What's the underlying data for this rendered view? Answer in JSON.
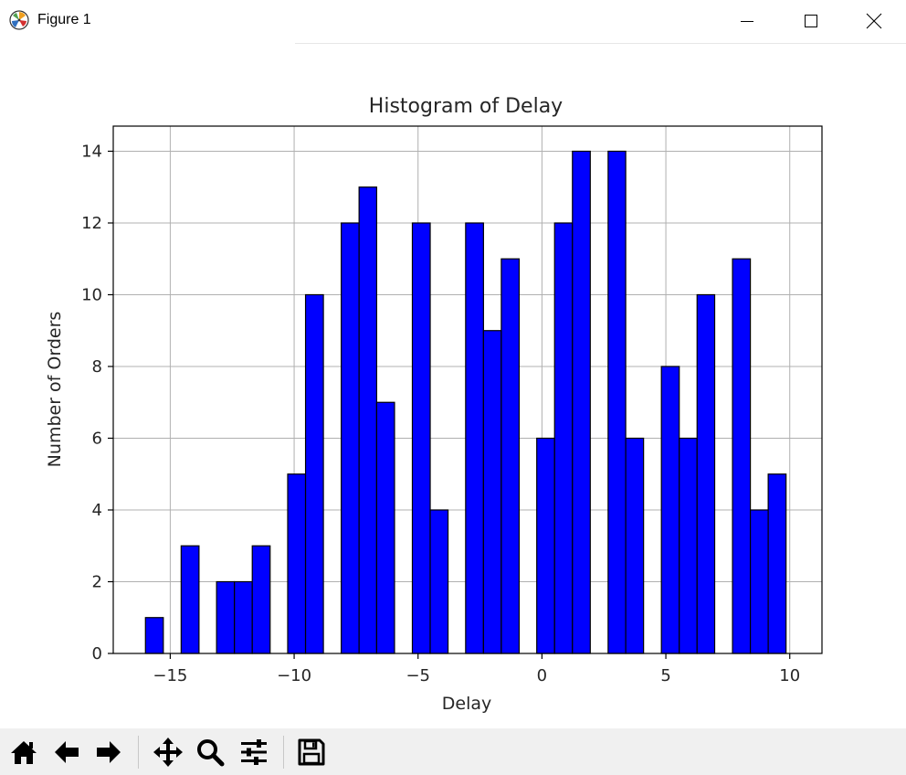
{
  "window": {
    "title": "Figure 1",
    "controls": [
      "minimize",
      "maximize",
      "close"
    ]
  },
  "toolbar": {
    "buttons": [
      "home-icon",
      "back-icon",
      "forward-icon",
      "pan-icon",
      "zoom-icon",
      "configure-icon",
      "save-icon"
    ]
  },
  "chart_data": {
    "type": "bar",
    "title": "Histogram of Delay",
    "xlabel": "Delay",
    "ylabel": "Number of Orders",
    "xlim": [
      -17.3,
      11.3
    ],
    "ylim": [
      0,
      14.7
    ],
    "xticks": [
      -15,
      -10,
      -5,
      0,
      5,
      10
    ],
    "xtick_labels": [
      "−15",
      "−10",
      "−5",
      "0",
      "5",
      "10"
    ],
    "yticks": [
      0,
      2,
      4,
      6,
      8,
      10,
      12,
      14
    ],
    "ytick_labels": [
      "0",
      "2",
      "4",
      "6",
      "8",
      "10",
      "12",
      "14"
    ],
    "grid": true,
    "bar_color": "#0000ff",
    "edge_color": "#000000",
    "bins": [
      {
        "x0": -16,
        "x1": -15.28,
        "count": 1
      },
      {
        "x0": -14.56,
        "x1": -13.84,
        "count": 3
      },
      {
        "x0": -13.13,
        "x1": -12.41,
        "count": 2
      },
      {
        "x0": -12.41,
        "x1": -11.69,
        "count": 2
      },
      {
        "x0": -11.69,
        "x1": -10.97,
        "count": 3
      },
      {
        "x0": -10.26,
        "x1": -9.54,
        "count": 5
      },
      {
        "x0": -9.54,
        "x1": -8.82,
        "count": 10
      },
      {
        "x0": -8.1,
        "x1": -7.38,
        "count": 12
      },
      {
        "x0": -7.38,
        "x1": -6.67,
        "count": 13
      },
      {
        "x0": -6.67,
        "x1": -5.95,
        "count": 7
      },
      {
        "x0": -5.23,
        "x1": -4.51,
        "count": 12
      },
      {
        "x0": -4.51,
        "x1": -3.79,
        "count": 4
      },
      {
        "x0": -3.08,
        "x1": -2.36,
        "count": 12
      },
      {
        "x0": -2.36,
        "x1": -1.64,
        "count": 9
      },
      {
        "x0": -1.64,
        "x1": -0.92,
        "count": 11
      },
      {
        "x0": -0.21,
        "x1": 0.51,
        "count": 6
      },
      {
        "x0": 0.51,
        "x1": 1.23,
        "count": 12
      },
      {
        "x0": 1.23,
        "x1": 1.95,
        "count": 14
      },
      {
        "x0": 2.67,
        "x1": 3.38,
        "count": 14
      },
      {
        "x0": 3.38,
        "x1": 4.1,
        "count": 6
      },
      {
        "x0": 4.82,
        "x1": 5.54,
        "count": 8
      },
      {
        "x0": 5.54,
        "x1": 6.26,
        "count": 6
      },
      {
        "x0": 6.26,
        "x1": 6.97,
        "count": 10
      },
      {
        "x0": 7.69,
        "x1": 8.41,
        "count": 11
      },
      {
        "x0": 8.41,
        "x1": 9.13,
        "count": 4
      },
      {
        "x0": 9.13,
        "x1": 9.85,
        "count": 5
      }
    ]
  }
}
